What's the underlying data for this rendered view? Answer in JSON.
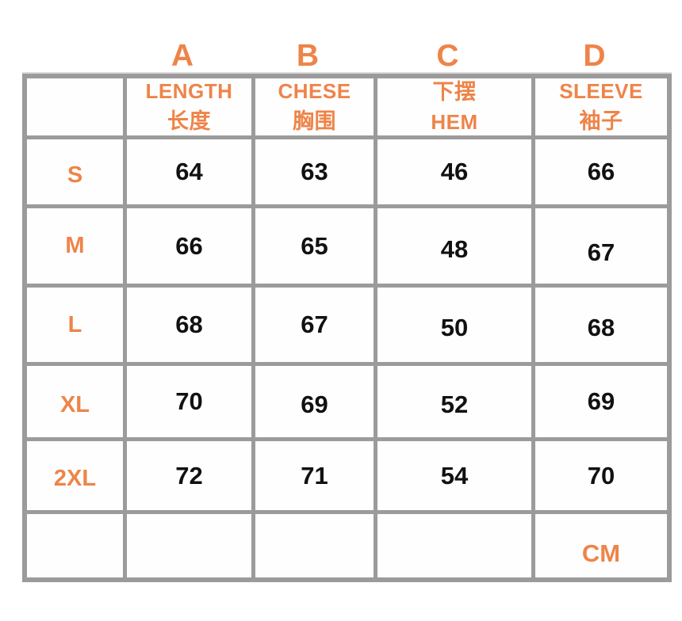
{
  "colors": {
    "accent_orange": "#ee8449",
    "grid_gray": "#9b9b9b",
    "number_black": "#111111",
    "cell_background": "#fefefe",
    "page_background": "#ffffff"
  },
  "column_letters": [
    "A",
    "B",
    "C",
    "D"
  ],
  "table": {
    "headers": [
      {
        "line1": "LENGTH",
        "line2": "长度"
      },
      {
        "line1": "CHESE",
        "line2": "胸围"
      },
      {
        "line1": "下摆",
        "line2": "HEM"
      },
      {
        "line1": "SLEEVE",
        "line2": "袖子"
      }
    ],
    "rows": [
      {
        "size": "S",
        "values": [
          "64",
          "63",
          "46",
          "66"
        ]
      },
      {
        "size": "M",
        "values": [
          "66",
          "65",
          "48",
          "67"
        ]
      },
      {
        "size": "L",
        "values": [
          "68",
          "67",
          "50",
          "68"
        ]
      },
      {
        "size": "XL",
        "values": [
          "70",
          "69",
          "52",
          "69"
        ]
      },
      {
        "size": "2XL",
        "values": [
          "72",
          "71",
          "54",
          "70"
        ]
      }
    ],
    "footer": {
      "unit": "CM"
    }
  },
  "chart_data": {
    "type": "table",
    "columns": [
      "",
      "A LENGTH 长度",
      "B CHESE 胸围",
      "C 下摆 HEM",
      "D SLEEVE 袖子"
    ],
    "rows": [
      [
        "S",
        64,
        63,
        46,
        66
      ],
      [
        "M",
        66,
        65,
        48,
        67
      ],
      [
        "L",
        68,
        67,
        50,
        68
      ],
      [
        "XL",
        70,
        69,
        52,
        69
      ],
      [
        "2XL",
        72,
        71,
        54,
        70
      ]
    ],
    "unit": "CM",
    "legend_position": "none",
    "grid": true
  }
}
